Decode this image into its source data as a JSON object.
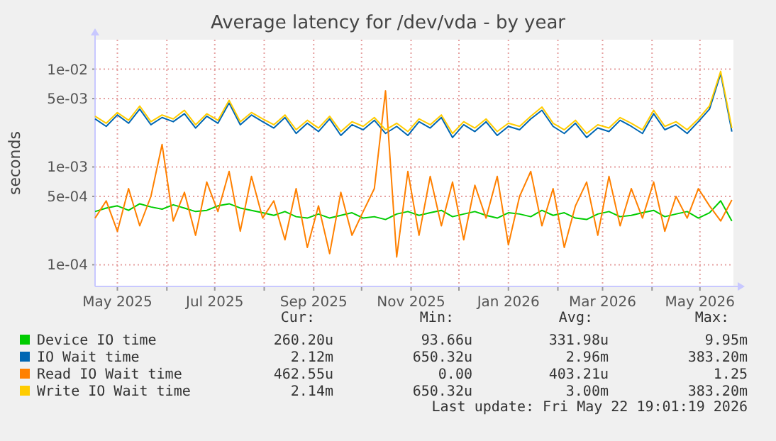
{
  "chart_data": {
    "type": "line",
    "title": "Average latency for /dev/vda - by year",
    "ylabel": "seconds",
    "log": true,
    "grid": true,
    "legend": "bottom left",
    "line_style": "solid",
    "xlim": [
      "2025-04-17",
      "2026-05-22"
    ],
    "xticks": [
      {
        "value": "2025-05-01",
        "label": "May 2025"
      },
      {
        "value": "2025-06-01",
        "label": null
      },
      {
        "value": "2025-07-01",
        "label": "Jul 2025"
      },
      {
        "value": "2025-08-01",
        "label": null
      },
      {
        "value": "2025-09-01",
        "label": "Sep 2025"
      },
      {
        "value": "2025-10-01",
        "label": null
      },
      {
        "value": "2025-11-01",
        "label": "Nov 2025"
      },
      {
        "value": "2025-12-01",
        "label": null
      },
      {
        "value": "2026-01-01",
        "label": "Jan 2026"
      },
      {
        "value": "2026-02-01",
        "label": null
      },
      {
        "value": "2026-03-01",
        "label": "Mar 2026"
      },
      {
        "value": "2026-04-01",
        "label": null
      },
      {
        "value": "2026-05-01",
        "label": "May 2026"
      }
    ],
    "ylim": [
      6e-05,
      0.02
    ],
    "yticks": [
      {
        "value": 0.0001,
        "label": "1e-04"
      },
      {
        "value": 0.0005,
        "label": "5e-04"
      },
      {
        "value": 0.001,
        "label": "1e-03"
      },
      {
        "value": 0.005,
        "label": "5e-03"
      },
      {
        "value": 0.01,
        "label": "1e-02"
      }
    ],
    "x": [
      "2025-04-17",
      "2025-04-24",
      "2025-05-01",
      "2025-05-08",
      "2025-05-15",
      "2025-05-22",
      "2025-05-29",
      "2025-06-05",
      "2025-06-12",
      "2025-06-19",
      "2025-06-26",
      "2025-07-03",
      "2025-07-10",
      "2025-07-17",
      "2025-07-24",
      "2025-07-31",
      "2025-08-07",
      "2025-08-14",
      "2025-08-21",
      "2025-08-28",
      "2025-09-04",
      "2025-09-11",
      "2025-09-18",
      "2025-09-25",
      "2025-10-02",
      "2025-10-09",
      "2025-10-16",
      "2025-10-23",
      "2025-10-30",
      "2025-11-06",
      "2025-11-13",
      "2025-11-20",
      "2025-11-27",
      "2025-12-04",
      "2025-12-11",
      "2025-12-18",
      "2025-12-25",
      "2026-01-01",
      "2026-01-08",
      "2026-01-15",
      "2026-01-22",
      "2026-01-29",
      "2026-02-05",
      "2026-02-12",
      "2026-02-19",
      "2026-02-26",
      "2026-03-05",
      "2026-03-12",
      "2026-03-19",
      "2026-03-26",
      "2026-04-02",
      "2026-04-09",
      "2026-04-16",
      "2026-04-23",
      "2026-04-30",
      "2026-05-07",
      "2026-05-14",
      "2026-05-21"
    ],
    "series": [
      {
        "name": "Device IO time",
        "color": "#00cc00",
        "values": [
          0.00035,
          0.00038,
          0.0004,
          0.00036,
          0.00042,
          0.00039,
          0.00037,
          0.00041,
          0.00038,
          0.00035,
          0.00036,
          0.0004,
          0.00042,
          0.00038,
          0.00036,
          0.00034,
          0.00032,
          0.00035,
          0.00031,
          0.0003,
          0.00033,
          0.0003,
          0.00032,
          0.00034,
          0.0003,
          0.00031,
          0.00029,
          0.00033,
          0.00035,
          0.00032,
          0.00034,
          0.00036,
          0.00031,
          0.00033,
          0.00035,
          0.00032,
          0.0003,
          0.00034,
          0.00033,
          0.00031,
          0.00036,
          0.00032,
          0.00034,
          0.0003,
          0.00029,
          0.00033,
          0.00035,
          0.00031,
          0.00032,
          0.00034,
          0.00036,
          0.00031,
          0.00033,
          0.00035,
          0.0003,
          0.00034,
          0.00045,
          0.00028
        ]
      },
      {
        "name": "IO Wait time",
        "color": "#0066b3",
        "values": [
          0.0031,
          0.0026,
          0.0034,
          0.0028,
          0.0039,
          0.0027,
          0.0032,
          0.0029,
          0.0035,
          0.0025,
          0.0033,
          0.0028,
          0.0045,
          0.0027,
          0.0034,
          0.0029,
          0.0025,
          0.0032,
          0.0022,
          0.0028,
          0.0023,
          0.0031,
          0.0021,
          0.0027,
          0.0024,
          0.003,
          0.0022,
          0.0026,
          0.0021,
          0.0029,
          0.0025,
          0.0032,
          0.002,
          0.0027,
          0.0023,
          0.0029,
          0.0021,
          0.0026,
          0.0024,
          0.0031,
          0.0038,
          0.0026,
          0.0022,
          0.0028,
          0.002,
          0.0025,
          0.0023,
          0.003,
          0.0026,
          0.0022,
          0.0035,
          0.0024,
          0.0027,
          0.0022,
          0.0029,
          0.0039,
          0.009,
          0.0023
        ]
      },
      {
        "name": "Read IO Wait time",
        "color": "#ff8000",
        "values": [
          0.0003,
          0.00045,
          0.00022,
          0.0006,
          0.00025,
          0.0005,
          0.0017,
          0.00028,
          0.00055,
          0.0002,
          0.0007,
          0.00035,
          0.0009,
          0.00022,
          0.0008,
          0.0003,
          0.00045,
          0.00018,
          0.0006,
          0.00015,
          0.0004,
          0.00013,
          0.00055,
          0.0002,
          0.00035,
          0.0006,
          0.006,
          0.00012,
          0.0009,
          0.0002,
          0.0008,
          0.00025,
          0.0007,
          0.00018,
          0.00065,
          0.0003,
          0.0008,
          0.00016,
          0.0005,
          0.0009,
          0.00025,
          0.0006,
          0.00015,
          0.0004,
          0.0007,
          0.0002,
          0.0008,
          0.00025,
          0.0006,
          0.0003,
          0.0007,
          0.00022,
          0.0005,
          0.0003,
          0.0006,
          0.0004,
          0.00028,
          0.00046
        ]
      },
      {
        "name": "Write IO Wait time",
        "color": "#ffcc00",
        "values": [
          0.0033,
          0.0028,
          0.0036,
          0.003,
          0.0042,
          0.0029,
          0.0034,
          0.0031,
          0.0038,
          0.0027,
          0.0035,
          0.003,
          0.0048,
          0.0029,
          0.0036,
          0.0031,
          0.0027,
          0.0034,
          0.0024,
          0.003,
          0.0025,
          0.0033,
          0.0023,
          0.0029,
          0.0026,
          0.0032,
          0.0024,
          0.0028,
          0.0023,
          0.0031,
          0.0027,
          0.0034,
          0.0022,
          0.0029,
          0.0025,
          0.0031,
          0.0023,
          0.0028,
          0.0026,
          0.0033,
          0.0041,
          0.0028,
          0.0024,
          0.003,
          0.0022,
          0.0027,
          0.0025,
          0.0032,
          0.0028,
          0.0024,
          0.0038,
          0.0026,
          0.0029,
          0.0024,
          0.0031,
          0.0042,
          0.0095,
          0.0025
        ]
      }
    ],
    "annotations": [
      "Cur:",
      "Min:",
      "Avg:",
      "Max:",
      "260.20u",
      "93.66u",
      "331.98u",
      "9.95m",
      "2.12m",
      "650.32u",
      "2.96m",
      "383.20m",
      "462.55u",
      "0.00",
      "403.21u",
      "1.25",
      "2.14m",
      "650.32u",
      "3.00m",
      "383.20m",
      "Last update: Fri May 22 19:01:19 2026"
    ]
  }
}
